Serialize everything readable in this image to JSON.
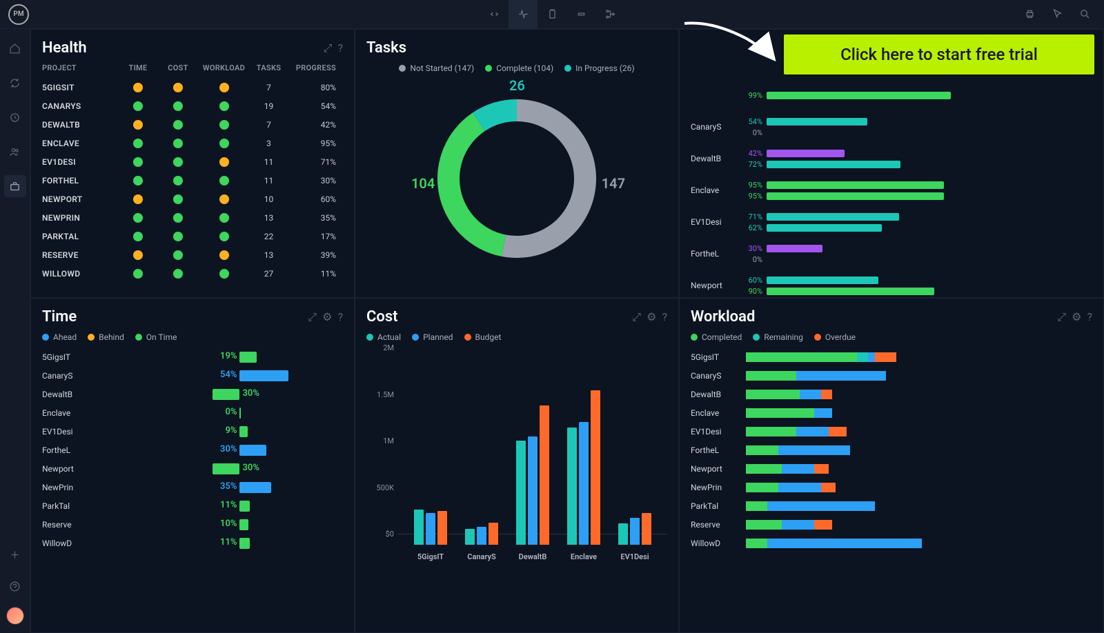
{
  "colors": {
    "green": "#3dd65f",
    "orange": "#ffb020",
    "cyan": "#1cc7b8",
    "blue": "#2da0f5",
    "purple": "#a455f0",
    "red_orange": "#ff6a2b",
    "lime": "#b8f000",
    "grey": "#808894",
    "donut_grey": "#9aa0ab",
    "bg": "#0d1421"
  },
  "cta_label": "Click here to start free trial",
  "health": {
    "title": "Health",
    "headers": [
      "PROJECT",
      "TIME",
      "COST",
      "WORKLOAD",
      "TASKS",
      "PROGRESS"
    ],
    "rows": [
      {
        "name": "5GIGSIT",
        "time": "orange",
        "cost": "orange",
        "workload": "orange",
        "tasks": 7,
        "progress": "80%"
      },
      {
        "name": "CANARYS",
        "time": "green",
        "cost": "green",
        "workload": "green",
        "tasks": 19,
        "progress": "54%"
      },
      {
        "name": "DEWALTB",
        "time": "orange",
        "cost": "green",
        "workload": "green",
        "tasks": 7,
        "progress": "42%"
      },
      {
        "name": "ENCLAVE",
        "time": "green",
        "cost": "green",
        "workload": "green",
        "tasks": 3,
        "progress": "95%"
      },
      {
        "name": "EV1DESI",
        "time": "green",
        "cost": "green",
        "workload": "orange",
        "tasks": 11,
        "progress": "71%"
      },
      {
        "name": "FORTHEL",
        "time": "green",
        "cost": "green",
        "workload": "green",
        "tasks": 11,
        "progress": "30%"
      },
      {
        "name": "NEWPORT",
        "time": "orange",
        "cost": "green",
        "workload": "orange",
        "tasks": 10,
        "progress": "60%"
      },
      {
        "name": "NEWPRIN",
        "time": "green",
        "cost": "green",
        "workload": "green",
        "tasks": 13,
        "progress": "35%"
      },
      {
        "name": "PARKTAL",
        "time": "green",
        "cost": "green",
        "workload": "green",
        "tasks": 22,
        "progress": "17%"
      },
      {
        "name": "RESERVE",
        "time": "orange",
        "cost": "green",
        "workload": "orange",
        "tasks": 13,
        "progress": "39%"
      },
      {
        "name": "WILLOWD",
        "time": "green",
        "cost": "green",
        "workload": "green",
        "tasks": 27,
        "progress": "11%"
      }
    ]
  },
  "tasks": {
    "title": "Tasks",
    "legend": [
      {
        "label": "Not Started (147)",
        "color": "#9aa0ab",
        "value": 147
      },
      {
        "label": "Complete (104)",
        "color": "#3dd65f",
        "value": 104
      },
      {
        "label": "In Progress (26)",
        "color": "#1cc7b8",
        "value": 26
      }
    ],
    "labels": {
      "ns": "147",
      "c": "104",
      "ip": "26"
    }
  },
  "progress": {
    "rows": [
      {
        "name": "",
        "bars": [
          {
            "pct": 99,
            "color": "#3dd65f",
            "label": "99%",
            "labelColor": "#3dd65f"
          }
        ]
      },
      {
        "name": "CanaryS",
        "bars": [
          {
            "pct": 54,
            "color": "#1cc7b8",
            "label": "54%",
            "labelColor": "#1cc7b8"
          },
          {
            "pct": 0,
            "color": "#1cc7b8",
            "label": "0%",
            "labelColor": "#9aa0ab"
          }
        ]
      },
      {
        "name": "DewaltB",
        "bars": [
          {
            "pct": 42,
            "color": "#a455f0",
            "label": "42%",
            "labelColor": "#a455f0"
          },
          {
            "pct": 72,
            "color": "#1cc7b8",
            "label": "72%",
            "labelColor": "#1cc7b8"
          }
        ]
      },
      {
        "name": "Enclave",
        "bars": [
          {
            "pct": 95,
            "color": "#3dd65f",
            "label": "95%",
            "labelColor": "#3dd65f"
          },
          {
            "pct": 95,
            "color": "#3dd65f",
            "label": "95%",
            "labelColor": "#3dd65f"
          }
        ]
      },
      {
        "name": "EV1Desi",
        "bars": [
          {
            "pct": 71,
            "color": "#1cc7b8",
            "label": "71%",
            "labelColor": "#1cc7b8"
          },
          {
            "pct": 62,
            "color": "#1cc7b8",
            "label": "62%",
            "labelColor": "#1cc7b8"
          }
        ]
      },
      {
        "name": "FortheL",
        "bars": [
          {
            "pct": 30,
            "color": "#a455f0",
            "label": "30%",
            "labelColor": "#a455f0"
          },
          {
            "pct": 0,
            "color": "#1cc7b8",
            "label": "0%",
            "labelColor": "#9aa0ab"
          }
        ]
      },
      {
        "name": "Newport",
        "bars": [
          {
            "pct": 60,
            "color": "#1cc7b8",
            "label": "60%",
            "labelColor": "#1cc7b8"
          },
          {
            "pct": 90,
            "color": "#3dd65f",
            "label": "90%",
            "labelColor": "#3dd65f"
          }
        ]
      }
    ]
  },
  "time": {
    "title": "Time",
    "legend": [
      {
        "label": "Ahead",
        "color": "#2da0f5"
      },
      {
        "label": "Behind",
        "color": "#ffb020"
      },
      {
        "label": "On Time",
        "color": "#3dd65f"
      }
    ],
    "center_pct": 58,
    "rows": [
      {
        "name": "5GigsIT",
        "pct": 19,
        "dir": "right",
        "color": "#3dd65f"
      },
      {
        "name": "CanaryS",
        "pct": 54,
        "dir": "right",
        "color": "#2da0f5"
      },
      {
        "name": "DewaltB",
        "pct": 30,
        "dir": "left",
        "color": "#3dd65f"
      },
      {
        "name": "Enclave",
        "pct": 0,
        "dir": "right",
        "color": "#3dd65f"
      },
      {
        "name": "EV1Desi",
        "pct": 9,
        "dir": "right",
        "color": "#3dd65f"
      },
      {
        "name": "FortheL",
        "pct": 30,
        "dir": "right",
        "color": "#2da0f5"
      },
      {
        "name": "Newport",
        "pct": 30,
        "dir": "left",
        "color": "#3dd65f"
      },
      {
        "name": "NewPrin",
        "pct": 35,
        "dir": "right",
        "color": "#2da0f5"
      },
      {
        "name": "ParkTal",
        "pct": 11,
        "dir": "right",
        "color": "#3dd65f"
      },
      {
        "name": "Reserve",
        "pct": 10,
        "dir": "right",
        "color": "#3dd65f"
      },
      {
        "name": "WillowD",
        "pct": 11,
        "dir": "right",
        "color": "#3dd65f"
      }
    ]
  },
  "cost": {
    "title": "Cost",
    "legend": [
      {
        "label": "Actual",
        "color": "#1cc7b8"
      },
      {
        "label": "Planned",
        "color": "#2da0f5"
      },
      {
        "label": "Budget",
        "color": "#ff6a2b"
      }
    ],
    "ymax": 2000000,
    "yticks": [
      {
        "label": "2M",
        "v": 2000000
      },
      {
        "label": "1.5M",
        "v": 1500000
      },
      {
        "label": "1M",
        "v": 1000000
      },
      {
        "label": "500K",
        "v": 500000
      },
      {
        "label": "$0",
        "v": 0
      }
    ],
    "groups": [
      {
        "name": "5GigsIT",
        "actual": 380000,
        "planned": 340000,
        "budget": 360000
      },
      {
        "name": "CanaryS",
        "actual": 170000,
        "planned": 190000,
        "budget": 240000
      },
      {
        "name": "DewaltB",
        "actual": 1120000,
        "planned": 1160000,
        "budget": 1500000
      },
      {
        "name": "Enclave",
        "actual": 1260000,
        "planned": 1320000,
        "budget": 1660000
      },
      {
        "name": "EV1Desi",
        "actual": 230000,
        "planned": 290000,
        "budget": 340000
      }
    ]
  },
  "workload": {
    "title": "Workload",
    "legend": [
      {
        "label": "Completed",
        "color": "#3dd65f"
      },
      {
        "label": "Remaining",
        "color": "#1cc7b8"
      },
      {
        "label": "Overdue",
        "color": "#ff6a2b"
      }
    ],
    "max": 100,
    "rows": [
      {
        "name": "5GigsIT",
        "segs": [
          {
            "v": 62,
            "c": "#3dd65f"
          },
          {
            "v": 6,
            "c": "#1cc7b8"
          },
          {
            "v": 4,
            "c": "#2da0f5"
          },
          {
            "v": 12,
            "c": "#ff6a2b"
          }
        ]
      },
      {
        "name": "CanaryS",
        "segs": [
          {
            "v": 28,
            "c": "#3dd65f"
          },
          {
            "v": 50,
            "c": "#2da0f5"
          }
        ]
      },
      {
        "name": "DewaltB",
        "segs": [
          {
            "v": 30,
            "c": "#3dd65f"
          },
          {
            "v": 12,
            "c": "#2da0f5"
          },
          {
            "v": 6,
            "c": "#ff6a2b"
          }
        ]
      },
      {
        "name": "Enclave",
        "segs": [
          {
            "v": 38,
            "c": "#3dd65f"
          },
          {
            "v": 10,
            "c": "#2da0f5"
          }
        ]
      },
      {
        "name": "EV1Desi",
        "segs": [
          {
            "v": 28,
            "c": "#3dd65f"
          },
          {
            "v": 18,
            "c": "#2da0f5"
          },
          {
            "v": 10,
            "c": "#ff6a2b"
          }
        ]
      },
      {
        "name": "FortheL",
        "segs": [
          {
            "v": 18,
            "c": "#3dd65f"
          },
          {
            "v": 40,
            "c": "#2da0f5"
          }
        ]
      },
      {
        "name": "Newport",
        "segs": [
          {
            "v": 20,
            "c": "#3dd65f"
          },
          {
            "v": 18,
            "c": "#2da0f5"
          },
          {
            "v": 8,
            "c": "#ff6a2b"
          }
        ]
      },
      {
        "name": "NewPrin",
        "segs": [
          {
            "v": 18,
            "c": "#3dd65f"
          },
          {
            "v": 24,
            "c": "#2da0f5"
          },
          {
            "v": 8,
            "c": "#ff6a2b"
          }
        ]
      },
      {
        "name": "ParkTal",
        "segs": [
          {
            "v": 12,
            "c": "#3dd65f"
          },
          {
            "v": 60,
            "c": "#2da0f5"
          }
        ]
      },
      {
        "name": "Reserve",
        "segs": [
          {
            "v": 20,
            "c": "#3dd65f"
          },
          {
            "v": 18,
            "c": "#2da0f5"
          },
          {
            "v": 10,
            "c": "#ff6a2b"
          }
        ]
      },
      {
        "name": "WillowD",
        "segs": [
          {
            "v": 12,
            "c": "#3dd65f"
          },
          {
            "v": 86,
            "c": "#2da0f5"
          }
        ]
      }
    ]
  }
}
